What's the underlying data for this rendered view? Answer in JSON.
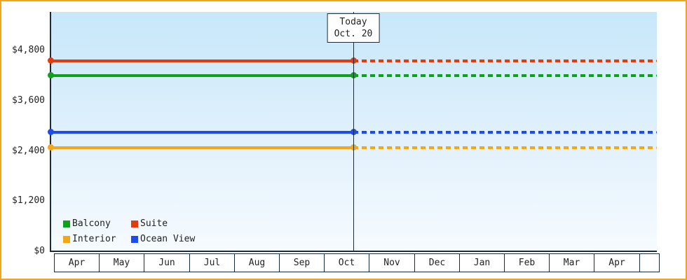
{
  "chart_data": {
    "type": "line",
    "title": "",
    "y_axis": {
      "max": 4800,
      "ticks": [
        {
          "value": 0,
          "label": "$0"
        },
        {
          "value": 1200,
          "label": "$1,200"
        },
        {
          "value": 2400,
          "label": "$2,400"
        },
        {
          "value": 3600,
          "label": "$3,600"
        },
        {
          "value": 4800,
          "label": "$4,800"
        }
      ]
    },
    "x_axis": {
      "months": [
        "Apr",
        "May",
        "Jun",
        "Jul",
        "Aug",
        "Sep",
        "Oct",
        "Nov",
        "Dec",
        "Jan",
        "Feb",
        "Mar",
        "Apr",
        ""
      ]
    },
    "today": {
      "label_line1": "Today",
      "label_line2": "Oct. 20",
      "month_index": 6,
      "day": 20,
      "days_in_month": 31
    },
    "series": [
      {
        "name": "Suite",
        "color": "#e03c10",
        "value": 4550,
        "past_style": "solid",
        "future_style": "dashed"
      },
      {
        "name": "Balcony",
        "color": "#10a01d",
        "value": 4200,
        "past_style": "solid",
        "future_style": "dashed"
      },
      {
        "name": "Ocean View",
        "color": "#1c4bee",
        "value": 2850,
        "past_style": "solid",
        "future_style": "dashed"
      },
      {
        "name": "Interior",
        "color": "#f2a71b",
        "value": 2480,
        "past_style": "solid",
        "future_style": "dashed"
      }
    ],
    "legend_rows": [
      [
        "Balcony",
        "Suite"
      ],
      [
        "Interior",
        "Ocean View"
      ]
    ],
    "legend_position": "bottom-left-inside",
    "grid": false
  },
  "colors": {
    "frame_border": "#f2a41c",
    "axis": "#1c2b38",
    "plot_bg_top": "#c7e7fa",
    "plot_bg_bottom": "#f6fbff",
    "text": "#222222"
  }
}
